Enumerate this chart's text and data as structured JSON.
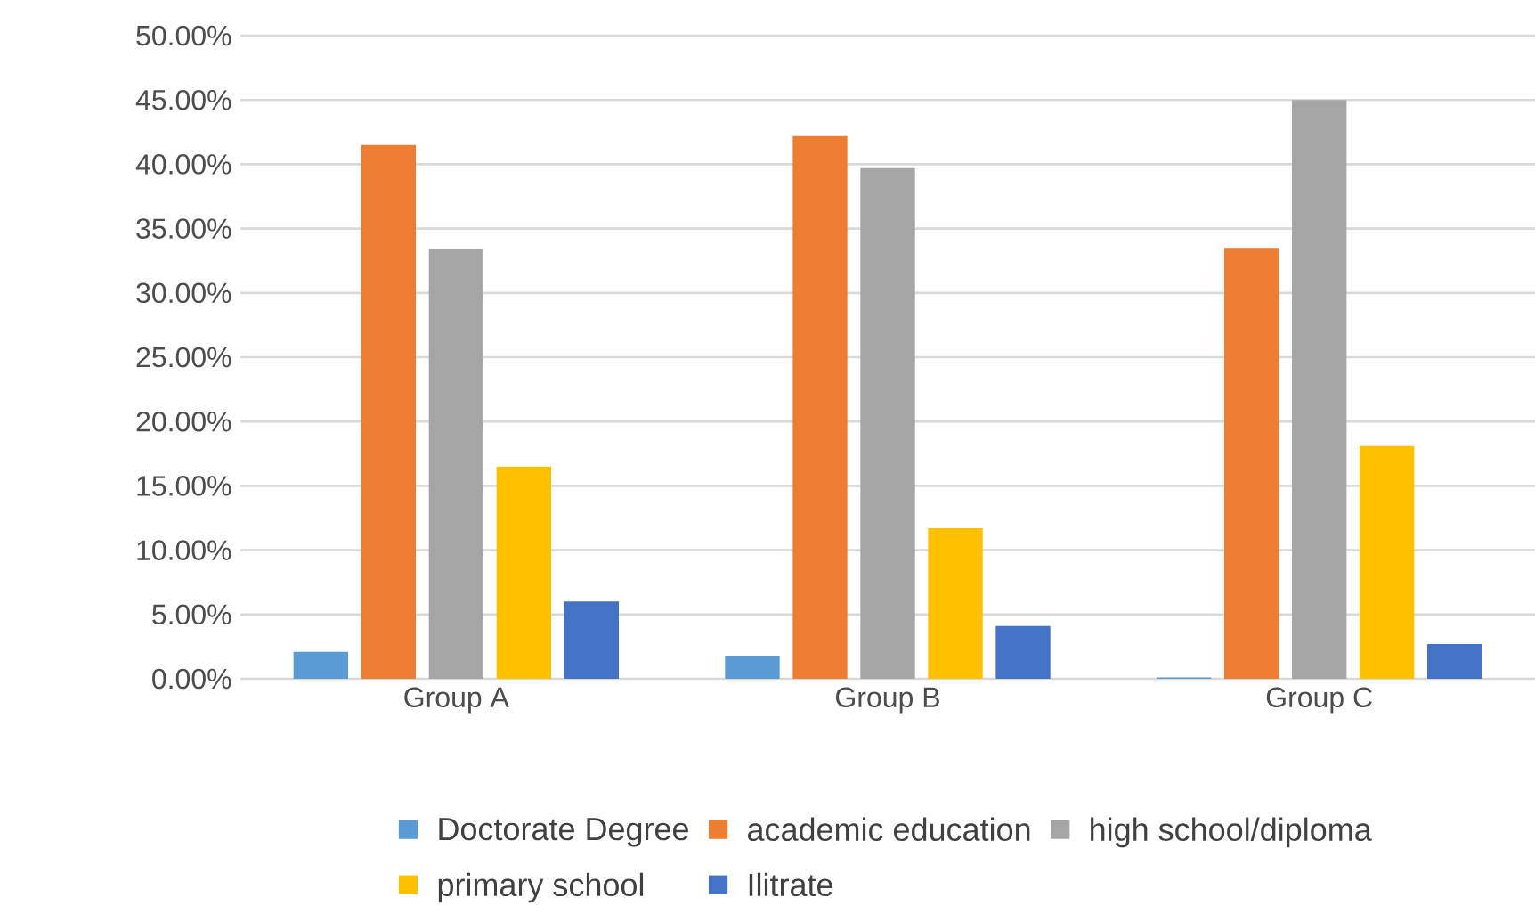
{
  "chart_data": {
    "type": "bar",
    "categories": [
      "Group A",
      "Group B",
      "Group C"
    ],
    "series": [
      {
        "name": "Doctorate Degree",
        "color": "#5b9bd5",
        "values": [
          2.1,
          1.8,
          0.1
        ]
      },
      {
        "name": "academic education",
        "color": "#ed7d31",
        "values": [
          41.5,
          42.2,
          33.5
        ]
      },
      {
        "name": "high school/diploma",
        "color": "#a5a5a5",
        "values": [
          33.4,
          39.7,
          45.0
        ]
      },
      {
        "name": "primary school",
        "color": "#ffc000",
        "values": [
          16.5,
          11.7,
          18.1
        ]
      },
      {
        "name": "Ilitrate",
        "color": "#4472c4",
        "values": [
          6.0,
          4.1,
          2.7
        ]
      }
    ],
    "ylim": [
      0,
      50
    ],
    "yticks": [
      {
        "value": 0,
        "label": "0.00%"
      },
      {
        "value": 5,
        "label": "5.00%"
      },
      {
        "value": 10,
        "label": "10.00%"
      },
      {
        "value": 15,
        "label": "15.00%"
      },
      {
        "value": 20,
        "label": "20.00%"
      },
      {
        "value": 25,
        "label": "25.00%"
      },
      {
        "value": 30,
        "label": "30.00%"
      },
      {
        "value": 35,
        "label": "35.00%"
      },
      {
        "value": 40,
        "label": "40.00%"
      },
      {
        "value": 45,
        "label": "45.00%"
      },
      {
        "value": 50,
        "label": "50.00%"
      }
    ],
    "grid": "y",
    "legend": "bottom"
  }
}
